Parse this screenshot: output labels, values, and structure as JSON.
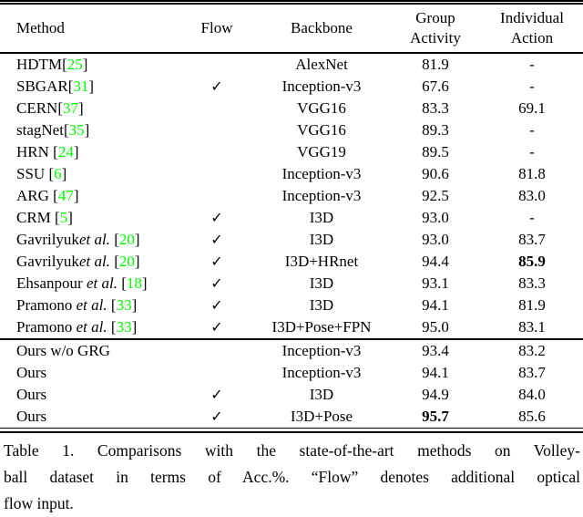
{
  "table": {
    "citation_color": "#00FF00",
    "headers": {
      "method": "Method",
      "flow": "Flow",
      "backbone": "Backbone",
      "group_line1": "Group",
      "group_line2": "Activity",
      "individual_line1": "Individual",
      "individual_line2": "Action"
    },
    "rows": [
      {
        "method": {
          "name": "HDTM",
          "etal": "",
          "open": "[",
          "num": "25",
          "close": "]"
        },
        "flow": "",
        "backbone": "AlexNet",
        "group": "81.9",
        "individual": "-",
        "group_bold": false,
        "individual_bold": false
      },
      {
        "method": {
          "name": "SBGAR",
          "etal": "",
          "open": "[",
          "num": "31",
          "close": "]"
        },
        "flow": "✓",
        "backbone": "Inception-v3",
        "group": "67.6",
        "individual": "-",
        "group_bold": false,
        "individual_bold": false
      },
      {
        "method": {
          "name": "CERN",
          "etal": "",
          "open": "[",
          "num": "37",
          "close": "]"
        },
        "flow": "",
        "backbone": "VGG16",
        "group": "83.3",
        "individual": "69.1",
        "group_bold": false,
        "individual_bold": false
      },
      {
        "method": {
          "name": "stagNet",
          "etal": "",
          "open": "[",
          "num": "35",
          "close": "]"
        },
        "flow": "",
        "backbone": "VGG16",
        "group": "89.3",
        "individual": "-",
        "group_bold": false,
        "individual_bold": false
      },
      {
        "method": {
          "name": "HRN ",
          "etal": "",
          "open": "[",
          "num": "24",
          "close": "]"
        },
        "flow": "",
        "backbone": "VGG19",
        "group": "89.5",
        "individual": "-",
        "group_bold": false,
        "individual_bold": false
      },
      {
        "method": {
          "name": "SSU ",
          "etal": "",
          "open": "[",
          "num": "6",
          "close": "]"
        },
        "flow": "",
        "backbone": "Inception-v3",
        "group": "90.6",
        "individual": "81.8",
        "group_bold": false,
        "individual_bold": false
      },
      {
        "method": {
          "name": "ARG ",
          "etal": "",
          "open": "[",
          "num": "47",
          "close": "]"
        },
        "flow": "",
        "backbone": "Inception-v3",
        "group": "92.5",
        "individual": "83.0",
        "group_bold": false,
        "individual_bold": false
      },
      {
        "method": {
          "name": "CRM ",
          "etal": "",
          "open": "[",
          "num": "5",
          "close": "]"
        },
        "flow": "✓",
        "backbone": "I3D",
        "group": "93.0",
        "individual": "-",
        "group_bold": false,
        "individual_bold": false
      },
      {
        "method": {
          "name": "Gavrilyuk",
          "etal": "et al.",
          "open": " [",
          "num": "20",
          "close": "]"
        },
        "flow": "✓",
        "backbone": "I3D",
        "group": "93.0",
        "individual": "83.7",
        "group_bold": false,
        "individual_bold": false
      },
      {
        "method": {
          "name": "Gavrilyuk",
          "etal": "et al.",
          "open": " [",
          "num": "20",
          "close": "]"
        },
        "flow": "✓",
        "backbone": "I3D+HRnet",
        "group": "94.4",
        "individual": "85.9",
        "group_bold": false,
        "individual_bold": true
      },
      {
        "method": {
          "name": "Ehsanpour ",
          "etal": "et al.",
          "open": " [",
          "num": "18",
          "close": "]"
        },
        "flow": "✓",
        "backbone": "I3D",
        "group": "93.1",
        "individual": "83.3",
        "group_bold": false,
        "individual_bold": false
      },
      {
        "method": {
          "name": "Pramono ",
          "etal": "et al.",
          "open": " [",
          "num": "33",
          "close": "]"
        },
        "flow": "✓",
        "backbone": "I3D",
        "group": "94.1",
        "individual": "81.9",
        "group_bold": false,
        "individual_bold": false
      },
      {
        "method": {
          "name": "Pramono ",
          "etal": "et al.",
          "open": " [",
          "num": "33",
          "close": "]"
        },
        "flow": "✓",
        "backbone": "I3D+Pose+FPN",
        "group": "95.0",
        "individual": "83.1",
        "group_bold": false,
        "individual_bold": false
      },
      {
        "method": {
          "name": "Ours w/o GRG",
          "etal": "",
          "open": "",
          "num": "",
          "close": ""
        },
        "flow": "",
        "backbone": "Inception-v3",
        "group": "93.4",
        "individual": "83.2",
        "group_bold": false,
        "individual_bold": false
      },
      {
        "method": {
          "name": "Ours",
          "etal": "",
          "open": "",
          "num": "",
          "close": ""
        },
        "flow": "",
        "backbone": "Inception-v3",
        "group": "94.1",
        "individual": "83.7",
        "group_bold": false,
        "individual_bold": false
      },
      {
        "method": {
          "name": "Ours",
          "etal": "",
          "open": "",
          "num": "",
          "close": ""
        },
        "flow": "✓",
        "backbone": "I3D",
        "group": "94.9",
        "individual": "84.0",
        "group_bold": false,
        "individual_bold": false
      },
      {
        "method": {
          "name": "Ours",
          "etal": "",
          "open": "",
          "num": "",
          "close": ""
        },
        "flow": "✓",
        "backbone": "I3D+Pose",
        "group": "95.7",
        "individual": "85.6",
        "group_bold": true,
        "individual_bold": false
      }
    ]
  },
  "caption": {
    "lines": [
      "Table 1. Comparisons with the state-of-the-art methods on Volley-",
      "ball dataset in terms of Acc.%. “Flow” denotes additional optical",
      "flow input."
    ]
  }
}
